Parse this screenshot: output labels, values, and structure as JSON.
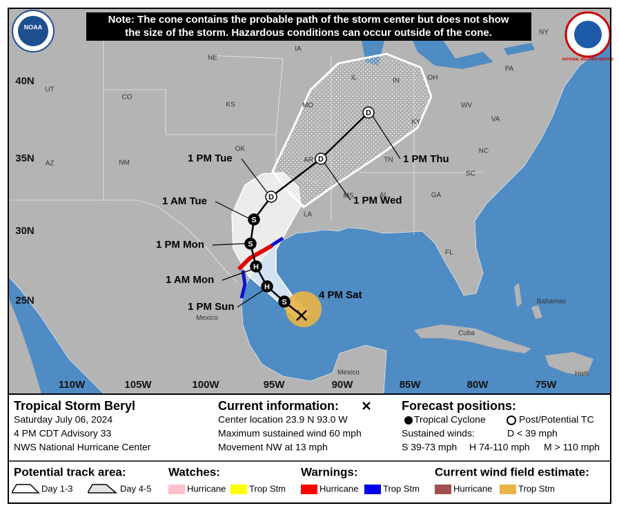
{
  "header": {
    "note_lines": [
      "Note: The cone contains the probable path of the storm center but does not show",
      "the size of the storm. Hazardous conditions can occur outside of the cone."
    ],
    "noaa_logo": "NOAA",
    "nws_logo": "NATIONAL WEATHER SERVICE"
  },
  "map": {
    "lat_labels": [
      "40N",
      "35N",
      "30N",
      "25N"
    ],
    "lon_labels": [
      "110W",
      "105W",
      "100W",
      "95W",
      "90W",
      "85W",
      "80W",
      "75W"
    ],
    "places": [
      "IA",
      "NE",
      "UT",
      "CO",
      "KS",
      "MO",
      "IL",
      "IN",
      "OH",
      "PA",
      "NY",
      "WV",
      "VA",
      "KY",
      "OK",
      "AR",
      "TN",
      "NC",
      "AZ",
      "NM",
      "SC",
      "MS",
      "AL",
      "GA",
      "LA",
      "FL",
      "Mexico",
      "Bahamas",
      "Cuba",
      "Mexico",
      "Haiti"
    ],
    "intensity_codes": [
      "S",
      "H",
      "H",
      "S",
      "S",
      "D",
      "D",
      "D"
    ],
    "forecast_times": [
      "4 PM Sat",
      "1 PM Sun",
      "1 AM Mon",
      "1 PM Mon",
      "1 AM Tue",
      "1 PM Tue",
      "1 PM Wed",
      "1 PM Thu"
    ]
  },
  "storm_info": {
    "name": "Tropical Storm Beryl",
    "date": "Saturday July 06, 2024",
    "advisory": "4 PM CDT Advisory 33",
    "center": "NWS National Hurricane Center"
  },
  "current_info": {
    "title": "Current information:",
    "lines": [
      "Center location 23.9 N 93.0 W",
      "Maximum sustained wind 60 mph",
      "Movement NW at 13 mph"
    ]
  },
  "forecast_positions": {
    "title": "Forecast positions:",
    "tropical_cyclone": "Tropical Cyclone",
    "post_potential": "Post/Potential TC",
    "sustained_winds": "Sustained winds:",
    "categories": [
      "D < 39 mph",
      "S 39-73 mph",
      "H 74-110 mph",
      "M > 110 mph"
    ]
  },
  "legend": {
    "track_area": {
      "title": "Potential track area:",
      "items": [
        "Day 1-3",
        "Day 4-5"
      ]
    },
    "watches": {
      "title": "Watches:",
      "items": [
        "Hurricane",
        "Trop Stm"
      ]
    },
    "warnings": {
      "title": "Warnings:",
      "items": [
        "Hurricane",
        "Trop Stm"
      ]
    },
    "wind_field": {
      "title": "Current wind field estimate:",
      "items": [
        "Hurricane",
        "Trop Stm"
      ]
    }
  }
}
